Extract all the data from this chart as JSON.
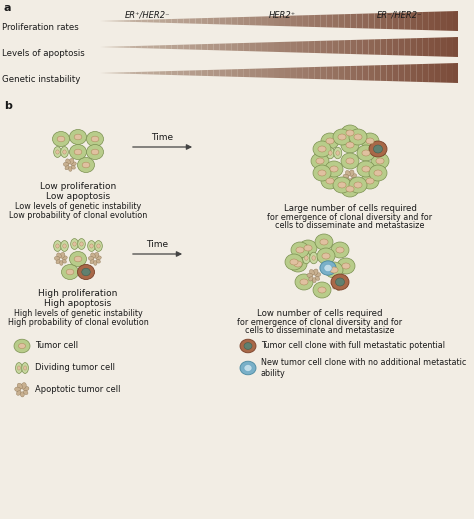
{
  "bg_color": "#f2ede4",
  "panel_a_label": "a",
  "panel_b_label": "b",
  "col_labels": [
    "ER⁺/HER2⁻",
    "HER2⁺",
    "ER⁻/HER2⁻"
  ],
  "row_labels": [
    "Proliferation rates",
    "Levels of apoptosis",
    "Genetic instability"
  ],
  "tri_color_left": "#c8b8a8",
  "tri_color_right": "#7a4a38",
  "arrow_color": "#444444",
  "text_color": "#1a1a1a",
  "cell_green": "#b8cc8a",
  "cell_green_edge": "#7a9050",
  "cell_nucleus": "#e0c0a0",
  "cell_nucleus_edge": "#b09060",
  "cell_brown_outer": "#a86848",
  "cell_brown_inner": "#608070",
  "cell_blue_outer": "#7ab0c8",
  "cell_blue_inner": "#c0dce8",
  "cell_apo": "#c8b090",
  "cell_dividing": "#c8d8a0"
}
